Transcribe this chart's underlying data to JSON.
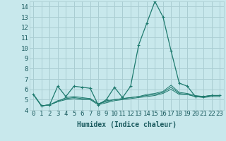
{
  "title": "",
  "xlabel": "Humidex (Indice chaleur)",
  "ylabel": "",
  "background_color": "#c8e8ec",
  "grid_color": "#aacdd2",
  "line_color": "#1e7a6e",
  "x_values": [
    0,
    1,
    2,
    3,
    4,
    5,
    6,
    7,
    8,
    9,
    10,
    11,
    12,
    13,
    14,
    15,
    16,
    17,
    18,
    19,
    20,
    21,
    22,
    23
  ],
  "series": [
    [
      5.5,
      4.4,
      4.5,
      6.3,
      5.3,
      6.3,
      6.2,
      6.1,
      4.5,
      5.0,
      6.2,
      5.2,
      6.3,
      10.3,
      12.4,
      14.5,
      13.0,
      9.7,
      6.6,
      6.3,
      5.3,
      5.3,
      5.4,
      5.4
    ],
    [
      5.5,
      4.4,
      4.5,
      4.8,
      5.2,
      5.3,
      5.2,
      5.1,
      4.6,
      4.8,
      5.0,
      5.1,
      5.2,
      5.3,
      5.5,
      5.6,
      5.8,
      6.4,
      5.7,
      5.6,
      5.4,
      5.3,
      5.4,
      5.4
    ],
    [
      5.5,
      4.4,
      4.5,
      4.8,
      5.0,
      5.1,
      5.0,
      5.0,
      4.5,
      4.7,
      4.9,
      5.0,
      5.1,
      5.2,
      5.3,
      5.4,
      5.6,
      6.0,
      5.5,
      5.5,
      5.3,
      5.2,
      5.3,
      5.3
    ],
    [
      5.5,
      4.4,
      4.5,
      4.9,
      5.1,
      5.2,
      5.1,
      5.1,
      4.6,
      4.9,
      5.0,
      5.1,
      5.2,
      5.3,
      5.4,
      5.5,
      5.7,
      6.2,
      5.6,
      5.5,
      5.3,
      5.3,
      5.4,
      5.4
    ]
  ],
  "ylim": [
    4,
    14.5
  ],
  "yticks": [
    4,
    5,
    6,
    7,
    8,
    9,
    10,
    11,
    12,
    13,
    14
  ],
  "xtick_labels": [
    "0",
    "1",
    "2",
    "3",
    "4",
    "5",
    "6",
    "7",
    "8",
    "9",
    "10",
    "11",
    "12",
    "13",
    "14",
    "15",
    "16",
    "17",
    "18",
    "19",
    "20",
    "21",
    "22",
    "23"
  ],
  "font_color": "#1a5a5e",
  "xlabel_fontsize": 7,
  "tick_fontsize": 6.5
}
